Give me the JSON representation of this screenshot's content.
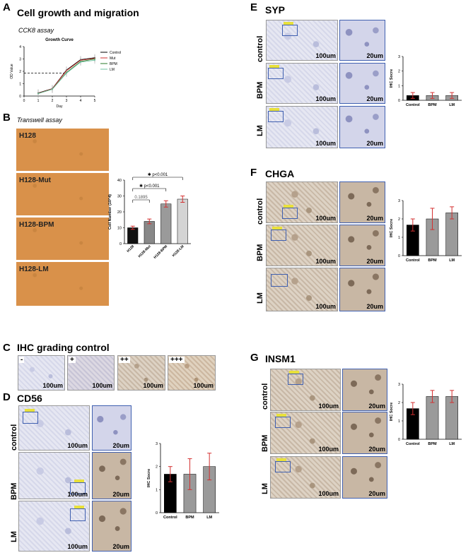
{
  "panels": {
    "A": {
      "letter": "A",
      "title": "Cell growth and migration",
      "subtitle": "CCK8 assay"
    },
    "B": {
      "letter": "B",
      "subtitle": "Transwell assay",
      "images": [
        "H128",
        "H128-Mut",
        "H128-BPM",
        "H128-LM"
      ]
    },
    "C": {
      "letter": "C",
      "title": "IHC grading control",
      "grades": [
        "-",
        "+",
        "++",
        "+++"
      ],
      "scale": "100um"
    },
    "D": {
      "letter": "D",
      "title": "CD56",
      "rows": [
        "control",
        "BPM",
        "LM"
      ],
      "scale_big": "100um",
      "scale_small": "20um"
    },
    "E": {
      "letter": "E",
      "title": "SYP",
      "rows": [
        "control",
        "BPM",
        "LM"
      ],
      "scale_big": "100um",
      "scale_small": "20um"
    },
    "F": {
      "letter": "F",
      "title": "CHGA",
      "rows": [
        "control",
        "BPM",
        "LM"
      ],
      "scale_big": "100um",
      "scale_small": "20um"
    },
    "G": {
      "letter": "G",
      "title": "INSM1",
      "rows": [
        "control",
        "BPM",
        "LM"
      ],
      "scale_big": "100um",
      "scale_small": "20um"
    }
  },
  "chart_data": [
    {
      "id": "growth-curve",
      "type": "line",
      "title": "Growth Curve",
      "xlabel": "Day",
      "ylabel": "OD Value",
      "xlim": [
        0,
        5
      ],
      "ylim": [
        0,
        4
      ],
      "xticks": [
        0,
        1,
        2,
        3,
        4,
        5
      ],
      "yticks": [
        0,
        1,
        2,
        3,
        4
      ],
      "x": [
        1,
        2,
        3,
        4,
        5
      ],
      "series": [
        {
          "name": "Control",
          "color": "#000000",
          "values": [
            0.25,
            0.6,
            2.1,
            2.95,
            3.1
          ]
        },
        {
          "name": "Mut",
          "color": "#d03030",
          "values": [
            0.22,
            0.58,
            2.05,
            2.9,
            3.05
          ]
        },
        {
          "name": "BPM",
          "color": "#2a7a2a",
          "values": [
            0.2,
            0.55,
            1.9,
            2.8,
            3.0
          ]
        },
        {
          "name": "LM",
          "color": "#70c0a0",
          "values": [
            0.2,
            0.55,
            1.85,
            2.75,
            2.9
          ]
        }
      ],
      "reference_y": 1.85,
      "legend": "right"
    },
    {
      "id": "transwell-bar",
      "type": "bar",
      "ylabel": "Cell Number (10^4)",
      "ylim": [
        0,
        40
      ],
      "yticks": [
        0,
        10,
        20,
        30,
        40
      ],
      "categories": [
        "H128",
        "H128-Mut",
        "H128-BPM",
        "H128-LM"
      ],
      "values": [
        10,
        14,
        25,
        28
      ],
      "errors": [
        1,
        1.5,
        2,
        2
      ],
      "colors": [
        "#111111",
        "#888888",
        "#9a9a9a",
        "#d4d4d4"
      ],
      "annotations": [
        {
          "text": "0.1895",
          "from": 0,
          "to": 1
        },
        {
          "text": "✱ p<0.001",
          "from": 0,
          "to": 2
        },
        {
          "text": "✱ p<0.001",
          "from": 0,
          "to": 3
        }
      ]
    },
    {
      "id": "cd56-bar",
      "type": "bar",
      "ylabel": "IHC Socre",
      "ylim": [
        0,
        3
      ],
      "yticks": [
        0,
        1,
        2,
        3
      ],
      "categories": [
        "Control",
        "BPM",
        "LM"
      ],
      "values": [
        1.67,
        1.67,
        2.0
      ],
      "errors": [
        0.33,
        0.67,
        0.58
      ],
      "colors": [
        "#000000",
        "#9a9a9a",
        "#9a9a9a"
      ]
    },
    {
      "id": "syp-bar",
      "type": "bar",
      "ylabel": "IHC Socre",
      "ylim": [
        0,
        3
      ],
      "yticks": [
        0,
        1,
        2,
        3
      ],
      "categories": [
        "Control",
        "BPM",
        "LM"
      ],
      "values": [
        0.33,
        0.33,
        0.33
      ],
      "errors": [
        0.2,
        0.2,
        0.2
      ],
      "colors": [
        "#000000",
        "#9a9a9a",
        "#9a9a9a"
      ]
    },
    {
      "id": "chga-bar",
      "type": "bar",
      "ylabel": "IHC Socre",
      "ylim": [
        0,
        3
      ],
      "yticks": [
        0,
        1,
        2,
        3
      ],
      "categories": [
        "Control",
        "BPM",
        "LM"
      ],
      "values": [
        1.67,
        2.0,
        2.33
      ],
      "errors": [
        0.33,
        0.58,
        0.33
      ],
      "colors": [
        "#000000",
        "#9a9a9a",
        "#9a9a9a"
      ]
    },
    {
      "id": "insm1-bar",
      "type": "bar",
      "ylabel": "IHC Socre",
      "ylim": [
        0,
        3
      ],
      "yticks": [
        0,
        1,
        2,
        3
      ],
      "categories": [
        "Control",
        "BPM",
        "LM"
      ],
      "values": [
        1.67,
        2.33,
        2.33
      ],
      "errors": [
        0.33,
        0.33,
        0.33
      ],
      "colors": [
        "#000000",
        "#9a9a9a",
        "#9a9a9a"
      ]
    }
  ]
}
